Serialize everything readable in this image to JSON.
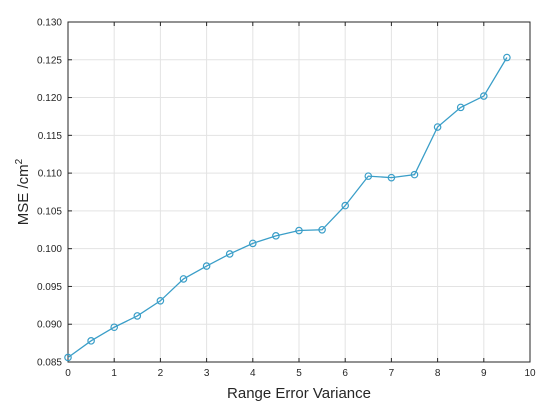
{
  "chart_data": {
    "type": "line",
    "title": "",
    "xlabel": "Range Error Variance",
    "ylabel": "MSE /cm",
    "ylabel_superscript": "2",
    "xlim": [
      0,
      10
    ],
    "ylim": [
      0.085,
      0.13
    ],
    "xticks": [
      "0",
      "1",
      "2",
      "3",
      "4",
      "5",
      "6",
      "7",
      "8",
      "9",
      "10"
    ],
    "yticks": [
      "0.085",
      "0.090",
      "0.095",
      "0.100",
      "0.105",
      "0.110",
      "0.115",
      "0.120",
      "0.125",
      "0.130"
    ],
    "grid": true,
    "marker": "circle",
    "line_color": "#3a9ec8",
    "series": [
      {
        "x": [
          0,
          0.5,
          1,
          1.5,
          2,
          2.5,
          3,
          3.5,
          4,
          4.5,
          5,
          5.5,
          6,
          6.5,
          7,
          7.5,
          8,
          8.5,
          9,
          9.5
        ],
        "y": [
          0.0856,
          0.0878,
          0.0896,
          0.0911,
          0.0931,
          0.096,
          0.0977,
          0.0993,
          0.1007,
          0.1017,
          0.1024,
          0.1025,
          0.1057,
          0.1096,
          0.1094,
          0.1098,
          0.1161,
          0.1187,
          0.1202,
          0.1253
        ]
      }
    ]
  }
}
